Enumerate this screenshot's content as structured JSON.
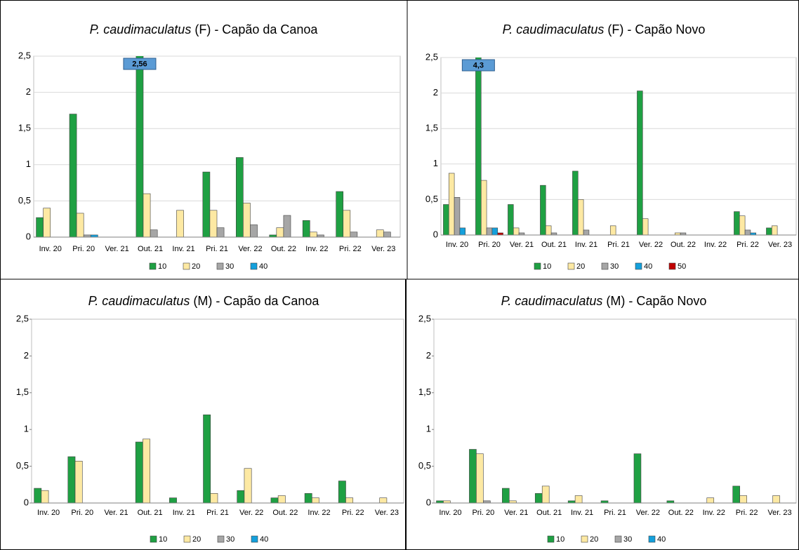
{
  "chart_data": [
    {
      "type": "bar",
      "title": [
        "P. caudimaculatus",
        " (F) - Capão da Canoa"
      ],
      "categories": [
        "Inv. 20",
        "Pri. 20",
        "Ver. 21",
        "Out. 21",
        "Inv. 21",
        "Pri. 21",
        "Ver. 22",
        "Out. 22",
        "Inv. 22",
        "Pri. 22",
        "Ver. 23"
      ],
      "ylim": [
        0,
        2.5
      ],
      "yticks": [
        0,
        {
          "value": 0.5,
          "label": "0,5"
        },
        1,
        {
          "value": 1.5,
          "label": "1,5"
        },
        2,
        {
          "value": 2.5,
          "label": "2,5"
        }
      ],
      "grid": true,
      "legend": "bottom",
      "series": [
        {
          "name": "10",
          "color": "#1fa043",
          "values": [
            0.27,
            1.7,
            0,
            2.56,
            0,
            0.9,
            1.1,
            0.03,
            0.23,
            0.63,
            0
          ],
          "value_labels": [
            null,
            null,
            null,
            "2,56",
            null,
            null,
            null,
            null,
            null,
            null,
            null
          ]
        },
        {
          "name": "20",
          "color": "#fde9a3",
          "values": [
            0.4,
            0.33,
            0,
            0.6,
            0.37,
            0.37,
            0.47,
            0.13,
            0.07,
            0.37,
            0.1
          ]
        },
        {
          "name": "30",
          "color": "#a6a6a6",
          "values": [
            0,
            0.03,
            0,
            0.1,
            0,
            0.13,
            0.17,
            0.3,
            0.03,
            0.07,
            0.07
          ]
        },
        {
          "name": "40",
          "color": "#14a0dc",
          "values": [
            0,
            0.03,
            0,
            0,
            0,
            0,
            0,
            0,
            0,
            0,
            0
          ]
        }
      ]
    },
    {
      "type": "bar",
      "title": [
        "P. caudimaculatus",
        " (F) - Capão Novo"
      ],
      "categories": [
        "Inv. 20",
        "Pri. 20",
        "Ver. 21",
        "Out. 21",
        "Inv. 21",
        "Pri. 21",
        "Ver. 22",
        "Out. 22",
        "Inv. 22",
        "Pri. 22",
        "Ver. 23"
      ],
      "ylim": [
        0,
        2.5
      ],
      "yticks": [
        0,
        {
          "value": 0.5,
          "label": "0,5"
        },
        1,
        {
          "value": 1.5,
          "label": "1,5"
        },
        2,
        {
          "value": 2.5,
          "label": "2,5"
        }
      ],
      "grid": true,
      "legend": "bottom",
      "series": [
        {
          "name": "10",
          "color": "#1fa043",
          "values": [
            0.43,
            4.3,
            0.43,
            0.7,
            0.9,
            0,
            2.03,
            0,
            0,
            0.33,
            0.1
          ],
          "value_labels": [
            null,
            "4,3",
            null,
            null,
            null,
            null,
            null,
            null,
            null,
            null,
            null
          ]
        },
        {
          "name": "20",
          "color": "#fde9a3",
          "values": [
            0.87,
            0.77,
            0.1,
            0.13,
            0.5,
            0.13,
            0.23,
            0.03,
            0,
            0.27,
            0.13
          ]
        },
        {
          "name": "30",
          "color": "#a6a6a6",
          "values": [
            0.53,
            0.1,
            0.03,
            0.03,
            0.07,
            0,
            0,
            0.03,
            0,
            0.07,
            0
          ]
        },
        {
          "name": "40",
          "color": "#14a0dc",
          "values": [
            0.1,
            0.1,
            0,
            0,
            0,
            0,
            0,
            0,
            0,
            0.03,
            0
          ]
        },
        {
          "name": "50",
          "color": "#c00000",
          "values": [
            0,
            0.03,
            0,
            0,
            0,
            0,
            0,
            0,
            0,
            0,
            0
          ]
        }
      ]
    },
    {
      "type": "bar",
      "title": [
        "P. caudimaculatus",
        " (M) - Capão da Canoa"
      ],
      "categories": [
        "Inv. 20",
        "Pri. 20",
        "Ver. 21",
        "Out. 21",
        "Inv. 21",
        "Pri. 21",
        "Ver. 22",
        "Out. 22",
        "Inv. 22",
        "Pri. 22",
        "Ver. 23"
      ],
      "ylim": [
        0,
        2.5
      ],
      "yticks": [
        0,
        {
          "value": 0.5,
          "label": "0,5"
        },
        1,
        {
          "value": 1.5,
          "label": "1,5"
        },
        2,
        {
          "value": 2.5,
          "label": "2,5"
        }
      ],
      "grid": false,
      "legend": "bottom",
      "series": [
        {
          "name": "10",
          "color": "#1fa043",
          "values": [
            0.2,
            0.63,
            0,
            0.83,
            0.07,
            1.2,
            0.17,
            0.07,
            0.13,
            0.3,
            0
          ]
        },
        {
          "name": "20",
          "color": "#fde9a3",
          "values": [
            0.17,
            0.57,
            0,
            0.87,
            0,
            0.13,
            0.47,
            0.1,
            0.07,
            0.07,
            0.07
          ]
        },
        {
          "name": "30",
          "color": "#a6a6a6",
          "values": [
            0,
            0,
            0,
            0,
            0,
            0,
            0,
            0,
            0,
            0,
            0
          ]
        },
        {
          "name": "40",
          "color": "#14a0dc",
          "values": [
            0,
            0,
            0,
            0,
            0,
            0,
            0,
            0,
            0,
            0,
            0
          ]
        }
      ]
    },
    {
      "type": "bar",
      "title": [
        "P. caudimaculatus",
        " (M) - Capão Novo"
      ],
      "categories": [
        "Inv. 20",
        "Pri. 20",
        "Ver. 21",
        "Out. 21",
        "Inv. 21",
        "Pri. 21",
        "Ver. 22",
        "Out. 22",
        "Inv. 22",
        "Pri. 22",
        "Ver. 23"
      ],
      "ylim": [
        0,
        2.5
      ],
      "yticks": [
        0,
        {
          "value": 0.5,
          "label": "0,5"
        },
        1,
        {
          "value": 1.5,
          "label": "1,5"
        },
        2,
        {
          "value": 2.5,
          "label": "2,5"
        }
      ],
      "grid": false,
      "legend": "bottom",
      "series": [
        {
          "name": "10",
          "color": "#1fa043",
          "values": [
            0.03,
            0.73,
            0.2,
            0.13,
            0.03,
            0.03,
            0.67,
            0.03,
            0,
            0.23,
            0
          ]
        },
        {
          "name": "20",
          "color": "#fde9a3",
          "values": [
            0.03,
            0.67,
            0.03,
            0.23,
            0.1,
            0,
            0,
            0,
            0.07,
            0.1,
            0.1
          ]
        },
        {
          "name": "30",
          "color": "#a6a6a6",
          "values": [
            0,
            0.03,
            0,
            0,
            0,
            0,
            0,
            0,
            0,
            0,
            0
          ]
        },
        {
          "name": "40",
          "color": "#14a0dc",
          "values": [
            0,
            0,
            0,
            0,
            0,
            0,
            0,
            0,
            0,
            0,
            0
          ]
        }
      ]
    }
  ]
}
